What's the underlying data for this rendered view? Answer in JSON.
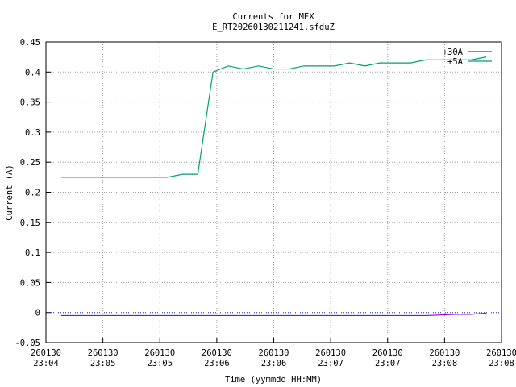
{
  "chart_data": {
    "type": "line",
    "title": "Currents for MEX",
    "subtitle": "E_RT20260130211241.sfduZ",
    "x_label": "Time (yymmdd HH:MM)",
    "y_label": "Current (A)",
    "x": [
      8,
      16,
      24,
      32,
      40,
      48,
      56,
      64,
      72,
      80,
      88,
      96,
      104,
      112,
      120,
      128,
      136,
      144,
      152,
      160,
      168,
      176,
      184,
      192,
      200,
      208,
      216,
      224,
      232
    ],
    "series": [
      {
        "name": "+30A",
        "color": "#9400d3",
        "values": [
          -0.005,
          -0.005,
          -0.005,
          -0.005,
          -0.005,
          -0.005,
          -0.005,
          -0.005,
          -0.005,
          -0.005,
          -0.005,
          -0.005,
          -0.005,
          -0.005,
          -0.005,
          -0.005,
          -0.005,
          -0.005,
          -0.005,
          -0.005,
          -0.005,
          -0.005,
          -0.005,
          -0.005,
          -0.005,
          -0.004,
          -0.003,
          -0.003,
          -0.001
        ]
      },
      {
        "name": "+5A",
        "color": "#009e73",
        "values": [
          0.225,
          0.225,
          0.225,
          0.225,
          0.225,
          0.225,
          0.225,
          0.225,
          0.23,
          0.23,
          0.4,
          0.41,
          0.405,
          0.41,
          0.405,
          0.405,
          0.41,
          0.41,
          0.41,
          0.415,
          0.41,
          0.415,
          0.415,
          0.415,
          0.42,
          0.42,
          0.42,
          0.42,
          0.425
        ]
      }
    ],
    "xlim": [
      0,
      240
    ],
    "xticks": [
      {
        "value": 0,
        "label": "260130\n23:04"
      },
      {
        "value": 30,
        "label": "260130\n23:05"
      },
      {
        "value": 60,
        "label": "260130\n23:05"
      },
      {
        "value": 90,
        "label": "260130\n23:06"
      },
      {
        "value": 120,
        "label": "260130\n23:06"
      },
      {
        "value": 150,
        "label": "260130\n23:07"
      },
      {
        "value": 180,
        "label": "260130\n23:07"
      },
      {
        "value": 210,
        "label": "260130\n23:08"
      },
      {
        "value": 240,
        "label": "260130\n23:08"
      }
    ],
    "ylim": [
      -0.05,
      0.45
    ],
    "yticks": [
      -0.05,
      0,
      0.05,
      0.1,
      0.15,
      0.2,
      0.25,
      0.3,
      0.35,
      0.4,
      0.45
    ],
    "grid": true,
    "zero_line": true,
    "legend": "top-right"
  }
}
